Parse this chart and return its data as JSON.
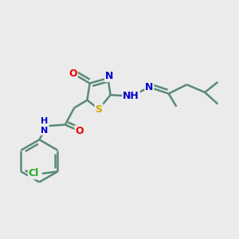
{
  "background_color": "#ebebeb",
  "bond_color": "#5a8a78",
  "atom_colors": {
    "O": "#ee0000",
    "N": "#0000cc",
    "S": "#ccaa00",
    "Cl": "#22aa22",
    "C": "#333333",
    "H": "#777777"
  },
  "figsize": [
    3.0,
    3.0
  ],
  "dpi": 100
}
